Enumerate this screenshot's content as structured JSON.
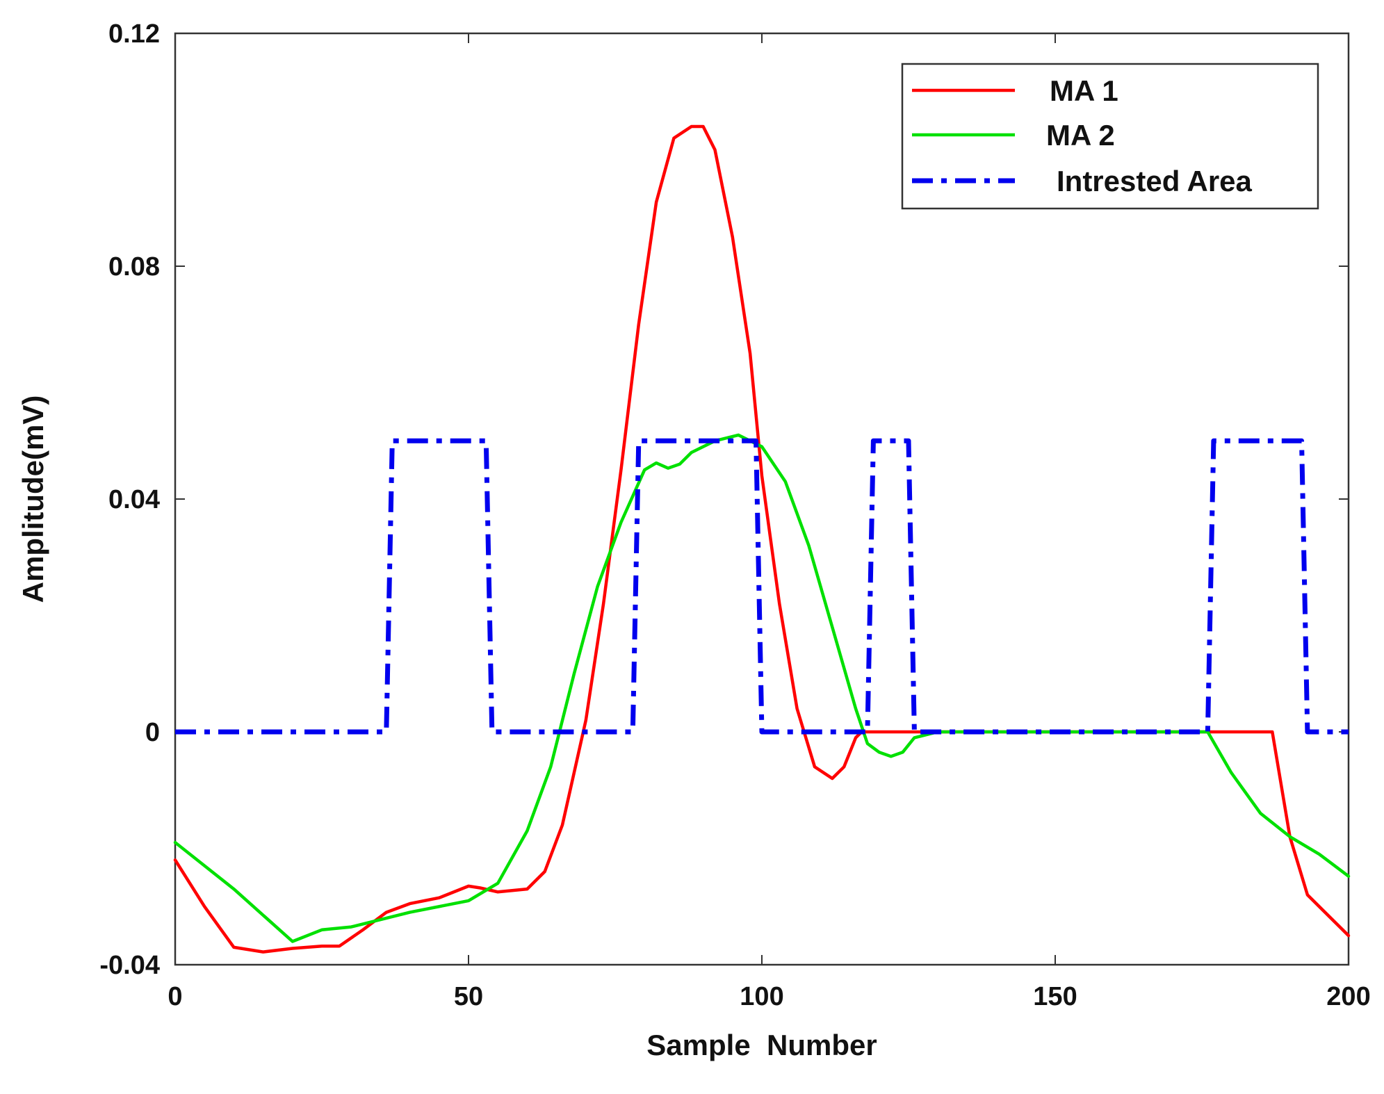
{
  "chart_data": {
    "type": "line",
    "title": "",
    "xlabel": "Sample  Number",
    "ylabel": "Amplitude(mV)",
    "xlim": [
      0,
      200
    ],
    "ylim": [
      -0.04,
      0.12
    ],
    "x_ticks": [
      0,
      50,
      100,
      150,
      200
    ],
    "x_tick_labels": [
      "0",
      "50",
      "100",
      "150",
      "200"
    ],
    "y_ticks": [
      -0.04,
      0,
      0.04,
      0.08,
      0.12
    ],
    "y_tick_labels": [
      "-0.04",
      "0",
      "0.04",
      "0.08",
      "0.12"
    ],
    "grid": false,
    "legend_position": "top-right",
    "series": [
      {
        "name": "MA 1",
        "color": "#ff0000",
        "style": "solid",
        "x": [
          0,
          5,
          10,
          15,
          20,
          25,
          28,
          32,
          36,
          40,
          45,
          50,
          52,
          55,
          60,
          63,
          66,
          70,
          73,
          76,
          79,
          82,
          85,
          88,
          90,
          92,
          95,
          98,
          100,
          103,
          106,
          109,
          112,
          114,
          116,
          117,
          120,
          125,
          130,
          150,
          175,
          187,
          190,
          193,
          196,
          200
        ],
        "values": [
          -0.022,
          -0.03,
          -0.037,
          -0.0378,
          -0.0372,
          -0.0368,
          -0.0368,
          -0.034,
          -0.031,
          -0.0295,
          -0.0285,
          -0.0265,
          -0.0268,
          -0.0275,
          -0.027,
          -0.024,
          -0.016,
          0.002,
          0.022,
          0.045,
          0.07,
          0.091,
          0.102,
          0.104,
          0.104,
          0.1,
          0.085,
          0.065,
          0.044,
          0.022,
          0.004,
          -0.006,
          -0.008,
          -0.006,
          -0.001,
          0,
          0,
          0,
          0,
          0,
          0,
          0,
          -0.018,
          -0.028,
          -0.031,
          -0.035
        ]
      },
      {
        "name": "MA 2",
        "color": "#00e000",
        "style": "solid",
        "x": [
          0,
          10,
          20,
          25,
          30,
          40,
          50,
          55,
          60,
          64,
          68,
          72,
          76,
          80,
          82,
          84,
          86,
          88,
          92,
          96,
          100,
          104,
          108,
          112,
          116,
          118,
          120,
          122,
          124,
          126,
          130,
          150,
          176,
          180,
          185,
          190,
          195,
          200
        ],
        "values": [
          -0.019,
          -0.027,
          -0.036,
          -0.034,
          -0.0335,
          -0.031,
          -0.029,
          -0.026,
          -0.017,
          -0.006,
          0.01,
          0.025,
          0.036,
          0.045,
          0.0462,
          0.0453,
          0.046,
          0.048,
          0.05,
          0.051,
          0.049,
          0.043,
          0.032,
          0.018,
          0.004,
          -0.002,
          -0.0035,
          -0.0042,
          -0.0035,
          -0.001,
          0,
          0,
          0,
          -0.007,
          -0.014,
          -0.018,
          -0.021,
          -0.0248
        ]
      },
      {
        "name": "Intrested Area",
        "color": "#0000ee",
        "style": "dash-dot",
        "x": [
          0,
          36,
          37,
          53,
          54,
          78,
          79,
          99,
          100,
          118,
          119,
          125,
          126,
          176,
          177,
          192,
          193,
          200
        ],
        "values": [
          0,
          0,
          0.05,
          0.05,
          0,
          0,
          0.05,
          0.05,
          0,
          0,
          0.05,
          0.05,
          0,
          0,
          0.05,
          0.05,
          0,
          0
        ]
      }
    ]
  }
}
